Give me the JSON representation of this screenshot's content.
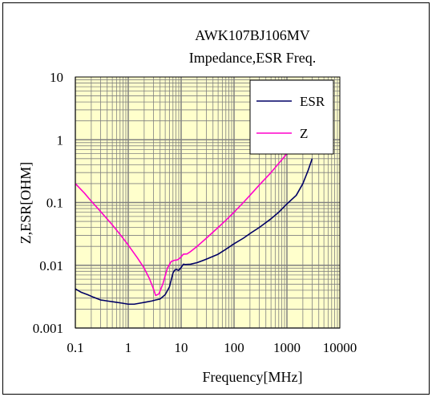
{
  "chart_data": {
    "type": "line",
    "title": "AWK107BJ106MV",
    "subtitle": "Impedance,ESR Freq.",
    "xlabel": "Frequency[MHz]",
    "ylabel": "Z,ESR[OHM]",
    "x_scale": "log",
    "y_scale": "log",
    "xlim": [
      0.1,
      10000
    ],
    "ylim": [
      0.001,
      10
    ],
    "x_ticks": [
      "0.1",
      "1",
      "10",
      "100",
      "1000",
      "10000"
    ],
    "y_ticks": [
      "0.001",
      "0.01",
      "0.1",
      "1",
      "10"
    ],
    "grid": true,
    "legend_position": "top-right",
    "colors": {
      "plot_bg": "#ffffcc",
      "grid": "#808080",
      "frame": "#000000"
    },
    "series": [
      {
        "name": "ESR",
        "color": "#000066",
        "x": [
          0.1,
          0.13,
          0.17,
          0.22,
          0.3,
          0.4,
          0.55,
          0.75,
          1.0,
          1.3,
          1.7,
          2.2,
          2.8,
          3.3,
          4.0,
          5.0,
          6.0,
          7.0,
          7.5,
          8.0,
          9.0,
          10,
          11,
          12,
          15,
          20,
          30,
          50,
          70,
          100,
          150,
          200,
          300,
          500,
          700,
          1000,
          1500,
          2000,
          2500,
          3000
        ],
        "values": [
          0.0042,
          0.0037,
          0.0034,
          0.0031,
          0.0028,
          0.0027,
          0.0026,
          0.0025,
          0.0024,
          0.0024,
          0.0025,
          0.0026,
          0.0027,
          0.0028,
          0.0029,
          0.0034,
          0.0045,
          0.0075,
          0.0083,
          0.0086,
          0.0083,
          0.0092,
          0.0104,
          0.0103,
          0.0104,
          0.011,
          0.0125,
          0.015,
          0.018,
          0.022,
          0.027,
          0.032,
          0.04,
          0.055,
          0.07,
          0.095,
          0.13,
          0.2,
          0.32,
          0.5
        ]
      },
      {
        "name": "Z",
        "color": "#ff00cc",
        "x": [
          0.1,
          0.15,
          0.2,
          0.3,
          0.5,
          0.7,
          1.0,
          1.5,
          2.0,
          2.5,
          3.0,
          3.3,
          3.8,
          4.5,
          5.5,
          6.5,
          7.5,
          8.5,
          9.5,
          11,
          13,
          15,
          20,
          30,
          50,
          70,
          100,
          150,
          200,
          300,
          500,
          700,
          1000,
          1500,
          2000,
          3000
        ],
        "values": [
          0.2,
          0.14,
          0.105,
          0.072,
          0.044,
          0.031,
          0.021,
          0.013,
          0.009,
          0.0062,
          0.0042,
          0.0033,
          0.0035,
          0.005,
          0.009,
          0.0115,
          0.012,
          0.0122,
          0.013,
          0.015,
          0.0152,
          0.0165,
          0.02,
          0.027,
          0.04,
          0.052,
          0.07,
          0.1,
          0.13,
          0.19,
          0.3,
          0.42,
          0.6,
          0.9,
          1.2,
          2.0
        ]
      }
    ]
  }
}
